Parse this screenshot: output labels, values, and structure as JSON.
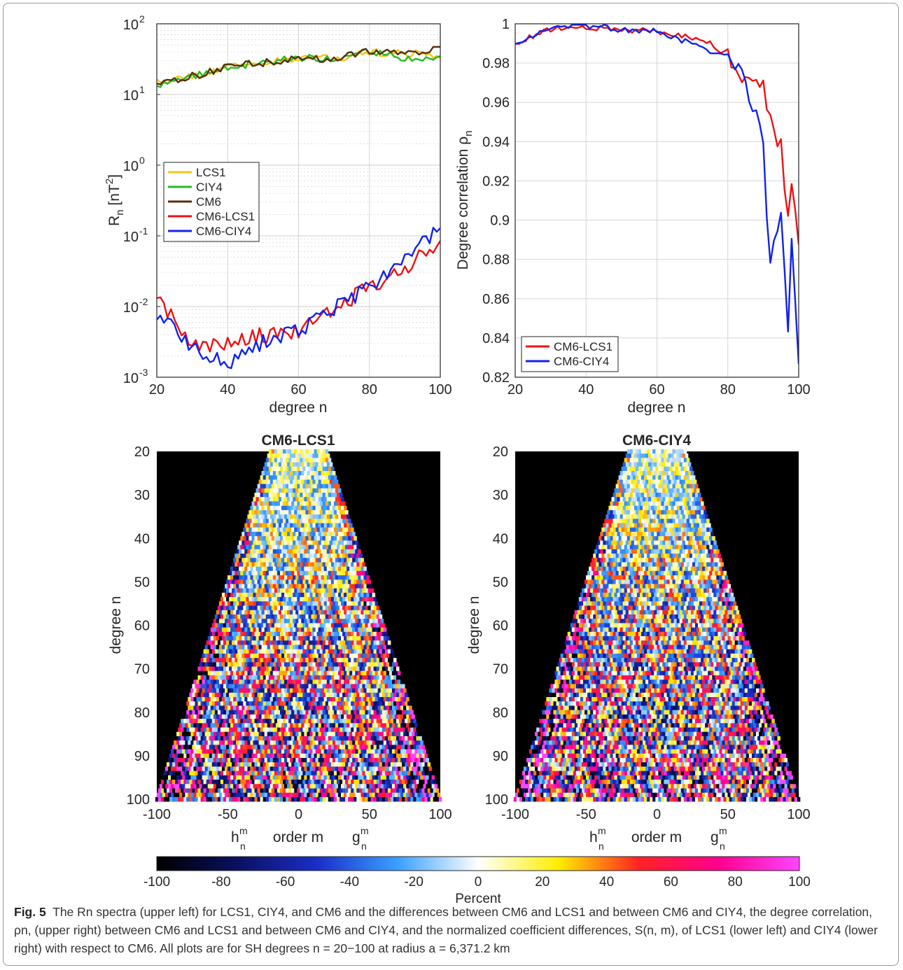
{
  "caption": {
    "label": "Fig. 5",
    "text": "The Rn spectra (upper left) for LCS1, CIY4, and CM6 and the differences between CM6 and LCS1 and between CM6 and CIY4, the degree correlation, ρn, (upper right) between CM6 and LCS1 and between CM6 and CIY4, and the normalized coefficient differences, S(n, m), of LCS1 (lower left) and CIY4 (lower right) with respect to CM6. All plots are for SH degrees n = 20−100 at radius a = 6,371.2 km"
  },
  "colors": {
    "LCS1": "#f5c518",
    "CIY4": "#22bb22",
    "CM6": "#5a2d0c",
    "CM6-LCS1": "#ee1111",
    "CM6-CIY4": "#1122ee"
  },
  "chart_data": [
    {
      "type": "line",
      "xlabel": "degree n",
      "ylabel": "R_n [nT^2]",
      "xlim": [
        20,
        100
      ],
      "ylim": [
        0.001,
        100
      ],
      "yscale": "log",
      "grid": true,
      "legend": "center-left",
      "x_ticks": [
        "20",
        "40",
        "60",
        "80",
        "100"
      ],
      "y_ticks": [
        {
          "base": "10",
          "exp": "2"
        },
        {
          "base": "10",
          "exp": "1"
        },
        {
          "base": "10",
          "exp": "0"
        },
        {
          "base": "10",
          "exp": "-1"
        },
        {
          "base": "10",
          "exp": "-2"
        },
        {
          "base": "10",
          "exp": "-3"
        }
      ],
      "x": [
        20,
        30,
        40,
        50,
        60,
        70,
        80,
        90,
        100
      ],
      "series": [
        {
          "name": "LCS1",
          "values": [
            15,
            18,
            25,
            28,
            33,
            32,
            40,
            38,
            36
          ]
        },
        {
          "name": "CIY4",
          "values": [
            13,
            18,
            25,
            28,
            33,
            32,
            42,
            33,
            32
          ]
        },
        {
          "name": "CM6",
          "values": [
            15,
            18,
            25,
            28,
            33,
            32,
            42,
            40,
            42
          ]
        },
        {
          "name": "CM6-LCS1",
          "values": [
            0.014,
            0.003,
            0.0028,
            0.004,
            0.0045,
            0.009,
            0.019,
            0.034,
            0.09
          ]
        },
        {
          "name": "CM6-CIY4",
          "values": [
            0.008,
            0.0028,
            0.0015,
            0.0033,
            0.0045,
            0.009,
            0.02,
            0.048,
            0.125
          ]
        }
      ]
    },
    {
      "type": "line",
      "xlabel": "degree n",
      "ylabel": "Degree correlation ρ_n",
      "xlim": [
        20,
        100
      ],
      "ylim": [
        0.82,
        1.0
      ],
      "grid": true,
      "legend": "bottom-left",
      "x_ticks": [
        "20",
        "40",
        "60",
        "80",
        "100"
      ],
      "y_ticks": [
        "1",
        "0.98",
        "0.96",
        "0.94",
        "0.92",
        "0.9",
        "0.88",
        "0.86",
        "0.84",
        "0.82"
      ],
      "x": [
        20,
        30,
        40,
        50,
        60,
        70,
        75,
        80,
        85,
        90,
        92,
        95,
        97,
        98,
        100
      ],
      "series": [
        {
          "name": "CM6-LCS1",
          "values": [
            0.99,
            0.997,
            0.998,
            0.997,
            0.996,
            0.993,
            0.99,
            0.984,
            0.97,
            0.968,
            0.955,
            0.94,
            0.9,
            0.917,
            0.881
          ]
        },
        {
          "name": "CM6-CIY4",
          "values": [
            0.99,
            0.998,
            0.999,
            0.997,
            0.996,
            0.99,
            0.985,
            0.985,
            0.97,
            0.94,
            0.875,
            0.905,
            0.85,
            0.897,
            0.826
          ]
        }
      ]
    },
    {
      "type": "heatmap",
      "title": "CM6-LCS1",
      "xlabel": "order m",
      "x_end_labels": {
        "left": {
          "base": "h",
          "sup": "m",
          "sub": "n"
        },
        "right": {
          "base": "g",
          "sup": "m",
          "sub": "n"
        }
      },
      "ylabel": "degree n",
      "xlim": [
        -100,
        100
      ],
      "ylim": [
        20,
        100
      ],
      "x_ticks": [
        "-100",
        "-50",
        "0",
        "50",
        "100"
      ],
      "y_ticks": [
        "20",
        "30",
        "40",
        "50",
        "60",
        "70",
        "80",
        "90",
        "100"
      ]
    },
    {
      "type": "heatmap",
      "title": "CM6-CIY4",
      "xlabel": "order m",
      "x_end_labels": {
        "left": {
          "base": "h",
          "sup": "m",
          "sub": "n"
        },
        "right": {
          "base": "g",
          "sup": "m",
          "sub": "n"
        }
      },
      "ylabel": "degree n",
      "xlim": [
        -100,
        100
      ],
      "ylim": [
        20,
        100
      ],
      "x_ticks": [
        "-100",
        "-50",
        "0",
        "50",
        "100"
      ],
      "y_ticks": [
        "20",
        "30",
        "40",
        "50",
        "60",
        "70",
        "80",
        "90",
        "100"
      ]
    }
  ],
  "colorbar": {
    "label": "Percent",
    "range": [
      -100,
      100
    ],
    "ticks": [
      "-100",
      "-80",
      "-60",
      "-40",
      "-20",
      "0",
      "20",
      "40",
      "60",
      "80",
      "100"
    ],
    "colormap": [
      "#000000",
      "#0a1060",
      "#1a2ec8",
      "#3aa0ff",
      "#ffffff",
      "#ffee00",
      "#ff2222",
      "#ff0090",
      "#ff44ff"
    ]
  }
}
